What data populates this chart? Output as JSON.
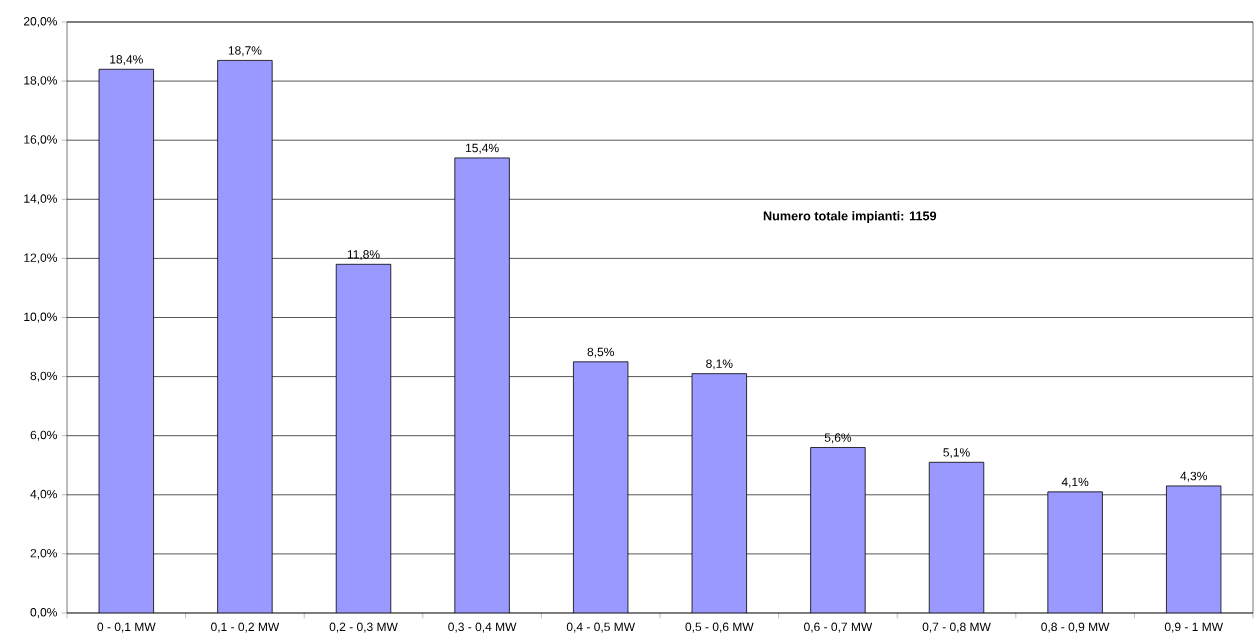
{
  "chart_data": {
    "type": "bar",
    "categories": [
      "0 - 0,1 MW",
      "0,1 - 0,2 MW",
      "0,2 - 0,3 MW",
      "0,3 - 0,4 MW",
      "0,4 - 0,5 MW",
      "0,5 - 0,6 MW",
      "0,6 - 0,7 MW",
      "0,7 - 0,8 MW",
      "0,8 - 0,9 MW",
      "0,9 - 1 MW"
    ],
    "values": [
      18.4,
      18.7,
      11.8,
      15.4,
      8.5,
      8.1,
      5.6,
      5.1,
      4.1,
      4.3
    ],
    "value_labels": [
      "18,4%",
      "18,7%",
      "11,8%",
      "15,4%",
      "8,5%",
      "8,1%",
      "5,6%",
      "5,1%",
      "4,1%",
      "4,3%"
    ],
    "color": "#9999ff",
    "ylim": [
      0,
      20
    ],
    "yticks": [
      {
        "value": 0,
        "label": "0,0%"
      },
      {
        "value": 2,
        "label": "2,0%"
      },
      {
        "value": 4,
        "label": "4,0%"
      },
      {
        "value": 6,
        "label": "6,0%"
      },
      {
        "value": 8,
        "label": "8,0%"
      },
      {
        "value": 10,
        "label": "10,0%"
      },
      {
        "value": 12,
        "label": "12,0%"
      },
      {
        "value": 14,
        "label": "14,0%"
      },
      {
        "value": 16,
        "label": "16,0%"
      },
      {
        "value": 18,
        "label": "18,0%"
      },
      {
        "value": 20,
        "label": "20,0%"
      }
    ],
    "grid": "y",
    "annotations": [
      "Numero totale impianti: 1159"
    ]
  }
}
